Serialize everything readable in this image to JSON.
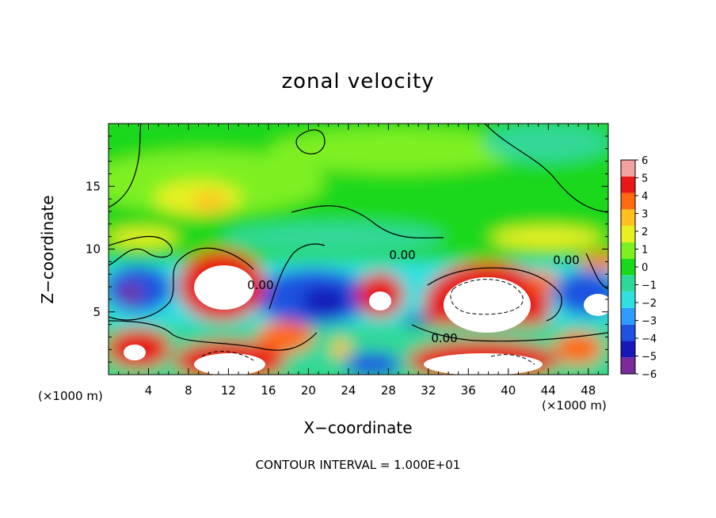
{
  "chart_data": {
    "type": "heatmap",
    "title": "zonal velocity",
    "xlabel": "X−coordinate",
    "ylabel": "Z−coordinate",
    "x_unit": "(×1000 m)",
    "x_unit_right": "(×1000 m)",
    "xlim": [
      0,
      50
    ],
    "ylim": [
      0,
      20
    ],
    "x_ticks": [
      4,
      8,
      12,
      16,
      20,
      24,
      28,
      32,
      36,
      40,
      44,
      48
    ],
    "y_ticks": [
      5,
      10,
      15
    ],
    "colorbar": {
      "range": [
        -6,
        6
      ],
      "ticks": [
        6,
        5,
        4,
        3,
        2,
        1,
        0,
        -1,
        -2,
        -3,
        -4,
        -5,
        -6
      ],
      "colors": [
        "#7a2a9a",
        "#1818b8",
        "#1f52e0",
        "#2e9cff",
        "#30e0e0",
        "#30d898",
        "#1ad81a",
        "#7ef020",
        "#e8f020",
        "#ffc020",
        "#ff6a10",
        "#e81818",
        "#f2a0a0"
      ],
      "overflow_color": "#ffffff"
    },
    "contour_labels": [
      {
        "text": "0.00",
        "x": 29.4,
        "z": 9.2
      },
      {
        "text": "0.00",
        "x": 45.8,
        "z": 8.8
      },
      {
        "text": "0.00",
        "x": 15.2,
        "z": 6.8
      },
      {
        "text": "0.00",
        "x": 33.6,
        "z": 2.6
      }
    ],
    "footnote": "CONTOUR INTERVAL = 1.000E+01"
  }
}
